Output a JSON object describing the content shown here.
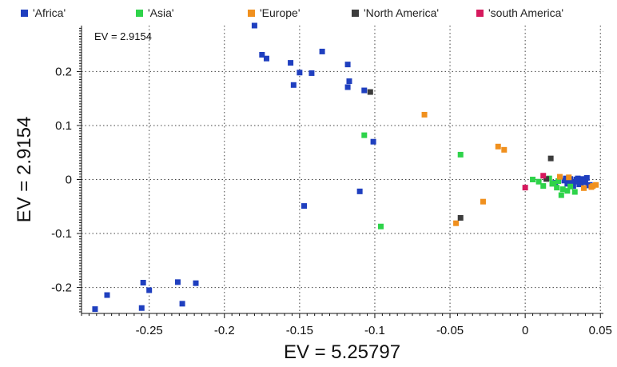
{
  "chart_data": {
    "type": "scatter",
    "xlabel": "EV = 5.25797",
    "ylabel": "EV = 2.9154",
    "annotation": "EV = 2.9154",
    "xlim": [
      -0.295,
      0.052
    ],
    "ylim": [
      -0.248,
      0.285
    ],
    "xticks": [
      -0.25,
      -0.2,
      -0.15,
      -0.1,
      -0.05,
      0,
      0.05
    ],
    "xtick_labels": [
      "-0.25",
      "-0.2",
      "-0.15",
      "-0.1",
      "-0.05",
      "0",
      "0.05"
    ],
    "yticks": [
      -0.2,
      -0.1,
      0,
      0.1,
      0.2
    ],
    "ytick_labels": [
      "-0.2",
      "-0.1",
      "0",
      "0.1",
      "0.2"
    ],
    "grid": true,
    "legend_position": "top",
    "series": [
      {
        "name": "'Africa'",
        "color": "#1f3fbf",
        "points": [
          [
            -0.18,
            0.285
          ],
          [
            -0.175,
            0.231
          ],
          [
            -0.172,
            0.224
          ],
          [
            -0.156,
            0.216
          ],
          [
            -0.15,
            0.198
          ],
          [
            -0.142,
            0.197
          ],
          [
            -0.135,
            0.237
          ],
          [
            -0.154,
            0.175
          ],
          [
            -0.118,
            0.213
          ],
          [
            -0.117,
            0.182
          ],
          [
            -0.118,
            0.171
          ],
          [
            -0.107,
            0.165
          ],
          [
            -0.101,
            0.07
          ],
          [
            -0.11,
            -0.022
          ],
          [
            -0.147,
            -0.049
          ],
          [
            -0.286,
            -0.24
          ],
          [
            -0.278,
            -0.214
          ],
          [
            -0.254,
            -0.191
          ],
          [
            -0.25,
            -0.205
          ],
          [
            -0.231,
            -0.19
          ],
          [
            -0.219,
            -0.192
          ],
          [
            -0.255,
            -0.238
          ],
          [
            -0.228,
            -0.23
          ],
          [
            0.026,
            -0.002
          ],
          [
            0.03,
            0.001
          ],
          [
            0.033,
            -0.004
          ],
          [
            0.035,
            0.002
          ],
          [
            0.037,
            -0.007
          ],
          [
            0.039,
            -0.003
          ],
          [
            0.041,
            0.003
          ],
          [
            0.028,
            -0.008
          ],
          [
            0.043,
            -0.01
          ],
          [
            0.032,
            -0.012
          ],
          [
            0.036,
            -0.009
          ],
          [
            0.034,
            0.0
          ],
          [
            0.04,
            -0.005
          ],
          [
            0.038,
            0.001
          ],
          [
            0.031,
            -0.006
          ],
          [
            0.027,
            0.002
          ],
          [
            0.042,
            -0.011
          ],
          [
            0.02,
            -0.006
          ]
        ]
      },
      {
        "name": "'Asia'",
        "color": "#2ed34a",
        "points": [
          [
            -0.107,
            0.082
          ],
          [
            -0.043,
            0.046
          ],
          [
            -0.096,
            -0.087
          ],
          [
            0.005,
            0.0
          ],
          [
            0.009,
            -0.004
          ],
          [
            0.012,
            -0.012
          ],
          [
            0.018,
            -0.008
          ],
          [
            0.022,
            -0.003
          ],
          [
            0.025,
            -0.018
          ],
          [
            0.028,
            -0.021
          ],
          [
            0.024,
            -0.029
          ],
          [
            0.03,
            -0.013
          ],
          [
            0.033,
            -0.023
          ],
          [
            0.021,
            -0.015
          ],
          [
            0.016,
            0.002
          ],
          [
            0.019,
            -0.007
          ]
        ]
      },
      {
        "name": "'Europe'",
        "color": "#f0901e",
        "points": [
          [
            -0.067,
            0.12
          ],
          [
            -0.018,
            0.061
          ],
          [
            -0.014,
            0.055
          ],
          [
            -0.028,
            -0.041
          ],
          [
            -0.046,
            -0.081
          ],
          [
            0.023,
            0.005
          ],
          [
            0.045,
            -0.012
          ],
          [
            0.047,
            -0.01
          ],
          [
            0.044,
            -0.014
          ],
          [
            0.039,
            -0.016
          ],
          [
            0.029,
            0.004
          ]
        ]
      },
      {
        "name": "'North America'",
        "color": "#3c3c3c",
        "points": [
          [
            -0.103,
            0.162
          ],
          [
            -0.043,
            -0.071
          ],
          [
            0.017,
            0.039
          ],
          [
            0.014,
            0.001
          ]
        ]
      },
      {
        "name": "'south America'",
        "color": "#d6195d",
        "points": [
          [
            0.0,
            -0.015
          ],
          [
            0.012,
            0.007
          ]
        ]
      }
    ]
  }
}
